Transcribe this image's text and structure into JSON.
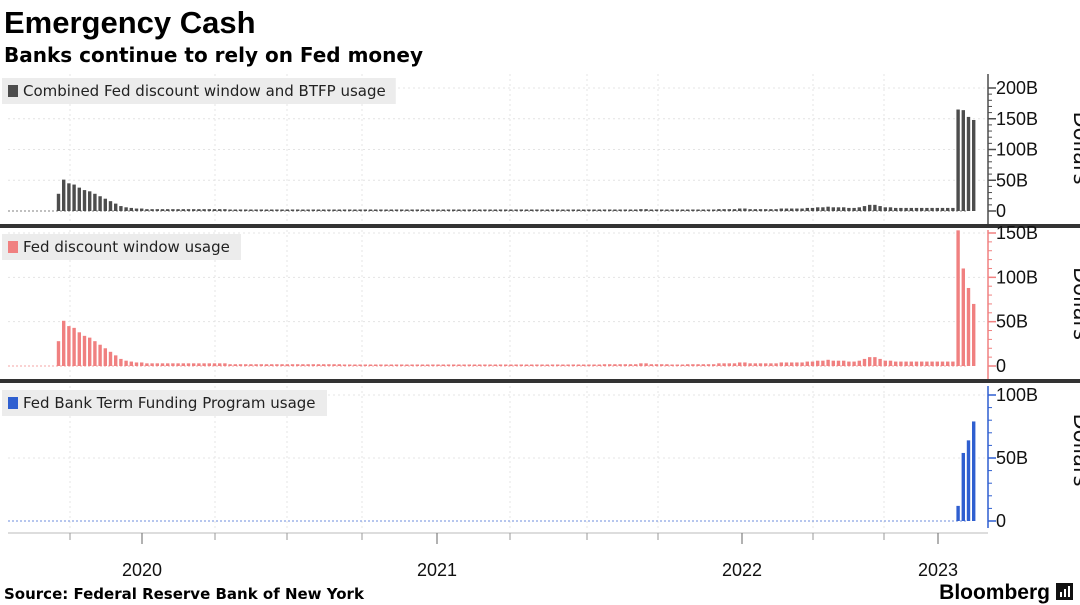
{
  "chart_data": {
    "type": "bar",
    "title": "Emergency Cash",
    "subtitle": "Banks continue to rely on Fed money",
    "source": "Source: Federal Reserve Bank of New York",
    "brand": "Bloomberg",
    "x_ticks": [
      "2020",
      "2021",
      "2022",
      "2023"
    ],
    "panels": [
      {
        "id": "combined",
        "legend": "Combined Fed discount window and BTFP usage",
        "color": "#4d4d4d",
        "ylabel": "Dollars",
        "ylim": [
          0,
          200
        ],
        "yticks": [
          {
            "v": 200,
            "label": "200B"
          },
          {
            "v": 150,
            "label": "150B"
          },
          {
            "v": 100,
            "label": "100B"
          },
          {
            "v": 50,
            "label": "50B"
          },
          {
            "v": 0,
            "label": "0"
          }
        ],
        "values": [
          0,
          0,
          0,
          0,
          0,
          0,
          0,
          0,
          0,
          28,
          51,
          45,
          43,
          38,
          34,
          32,
          28,
          24,
          20,
          16,
          12,
          8,
          6,
          5,
          4,
          4,
          3,
          3,
          3,
          3,
          3,
          3,
          3,
          3,
          3,
          3,
          3,
          3,
          3,
          3,
          3,
          3,
          2,
          2,
          2,
          2,
          2,
          2,
          2,
          2,
          2,
          2,
          2,
          2,
          2,
          2,
          2,
          2,
          2,
          2,
          2,
          2,
          2,
          2,
          1,
          1,
          1,
          1,
          1,
          1,
          1,
          1,
          1,
          1,
          1,
          1,
          1,
          1,
          1,
          1,
          1,
          1,
          1,
          1,
          1,
          1,
          1,
          1,
          1,
          1,
          1,
          1,
          1,
          1,
          1,
          1,
          1,
          1,
          1,
          1,
          1,
          1,
          1,
          1,
          1,
          1,
          1,
          1,
          1,
          1,
          1,
          1,
          1,
          1,
          2,
          2,
          2,
          2,
          2,
          2,
          2,
          3,
          3,
          2,
          2,
          2,
          2,
          1,
          1,
          1,
          2,
          2,
          2,
          2,
          2,
          2,
          3,
          3,
          3,
          3,
          4,
          4,
          3,
          3,
          3,
          3,
          3,
          3,
          4,
          4,
          4,
          4,
          4,
          5,
          5,
          6,
          6,
          7,
          6,
          6,
          6,
          5,
          5,
          6,
          8,
          10,
          10,
          8,
          6,
          6,
          5,
          5,
          5,
          5,
          5,
          5,
          5,
          5,
          5,
          5,
          5,
          5,
          165,
          164,
          153,
          148,
          0,
          0,
          0,
          0,
          0,
          0,
          0,
          0
        ]
      },
      {
        "id": "discount",
        "legend": "Fed discount window usage",
        "color": "#f08080",
        "ylabel": "Dollars",
        "ylim": [
          0,
          200
        ],
        "yticks": [
          {
            "v": 150,
            "label": "150B"
          },
          {
            "v": 100,
            "label": "100B"
          },
          {
            "v": 50,
            "label": "50B"
          },
          {
            "v": 0,
            "label": "0"
          }
        ],
        "values": [
          0,
          0,
          0,
          0,
          0,
          0,
          0,
          0,
          0,
          28,
          51,
          45,
          43,
          38,
          34,
          32,
          28,
          24,
          20,
          16,
          12,
          8,
          6,
          5,
          4,
          4,
          3,
          3,
          3,
          3,
          3,
          3,
          3,
          3,
          3,
          3,
          3,
          3,
          3,
          3,
          3,
          3,
          2,
          2,
          2,
          2,
          2,
          2,
          2,
          2,
          2,
          2,
          2,
          2,
          2,
          2,
          2,
          2,
          2,
          2,
          2,
          2,
          2,
          2,
          1,
          1,
          1,
          1,
          1,
          1,
          1,
          1,
          1,
          1,
          1,
          1,
          1,
          1,
          1,
          1,
          1,
          1,
          1,
          1,
          1,
          1,
          1,
          1,
          1,
          1,
          1,
          1,
          1,
          1,
          1,
          1,
          1,
          1,
          1,
          1,
          1,
          1,
          1,
          1,
          1,
          1,
          1,
          1,
          1,
          1,
          1,
          1,
          1,
          1,
          2,
          2,
          2,
          2,
          2,
          2,
          2,
          3,
          3,
          2,
          2,
          2,
          2,
          1,
          1,
          1,
          2,
          2,
          2,
          2,
          2,
          2,
          3,
          3,
          3,
          3,
          4,
          4,
          3,
          3,
          3,
          3,
          3,
          3,
          4,
          4,
          4,
          4,
          4,
          5,
          5,
          6,
          6,
          7,
          6,
          6,
          6,
          5,
          5,
          6,
          8,
          10,
          10,
          8,
          6,
          6,
          5,
          5,
          5,
          5,
          5,
          5,
          5,
          5,
          5,
          5,
          5,
          5,
          153,
          110,
          88,
          70,
          0,
          0,
          0,
          0,
          0,
          0,
          0,
          0
        ]
      },
      {
        "id": "btfp",
        "legend": "Fed Bank Term Funding Program usage",
        "color": "#2f5fd0",
        "ylabel": "Dollars",
        "ylim": [
          0,
          100
        ],
        "yticks": [
          {
            "v": 100,
            "label": "100B"
          },
          {
            "v": 50,
            "label": "50B"
          },
          {
            "v": 0,
            "label": "0"
          }
        ],
        "values": [
          0,
          0,
          0,
          0,
          0,
          0,
          0,
          0,
          0,
          0,
          0,
          0,
          0,
          0,
          0,
          0,
          0,
          0,
          0,
          0,
          0,
          0,
          0,
          0,
          0,
          0,
          0,
          0,
          0,
          0,
          0,
          0,
          0,
          0,
          0,
          0,
          0,
          0,
          0,
          0,
          0,
          0,
          0,
          0,
          0,
          0,
          0,
          0,
          0,
          0,
          0,
          0,
          0,
          0,
          0,
          0,
          0,
          0,
          0,
          0,
          0,
          0,
          0,
          0,
          0,
          0,
          0,
          0,
          0,
          0,
          0,
          0,
          0,
          0,
          0,
          0,
          0,
          0,
          0,
          0,
          0,
          0,
          0,
          0,
          0,
          0,
          0,
          0,
          0,
          0,
          0,
          0,
          0,
          0,
          0,
          0,
          0,
          0,
          0,
          0,
          0,
          0,
          0,
          0,
          0,
          0,
          0,
          0,
          0,
          0,
          0,
          0,
          0,
          0,
          0,
          0,
          0,
          0,
          0,
          0,
          0,
          0,
          0,
          0,
          0,
          0,
          0,
          0,
          0,
          0,
          0,
          0,
          0,
          0,
          0,
          0,
          0,
          0,
          0,
          0,
          0,
          0,
          0,
          0,
          0,
          0,
          0,
          0,
          0,
          0,
          0,
          0,
          0,
          0,
          0,
          0,
          0,
          0,
          0,
          0,
          0,
          0,
          0,
          0,
          0,
          0,
          0,
          0,
          0,
          0,
          0,
          0,
          0,
          0,
          0,
          0,
          0,
          0,
          0,
          0,
          0,
          0,
          12,
          54,
          64,
          79,
          0,
          0,
          0,
          0,
          0,
          0,
          0,
          0
        ]
      }
    ]
  }
}
